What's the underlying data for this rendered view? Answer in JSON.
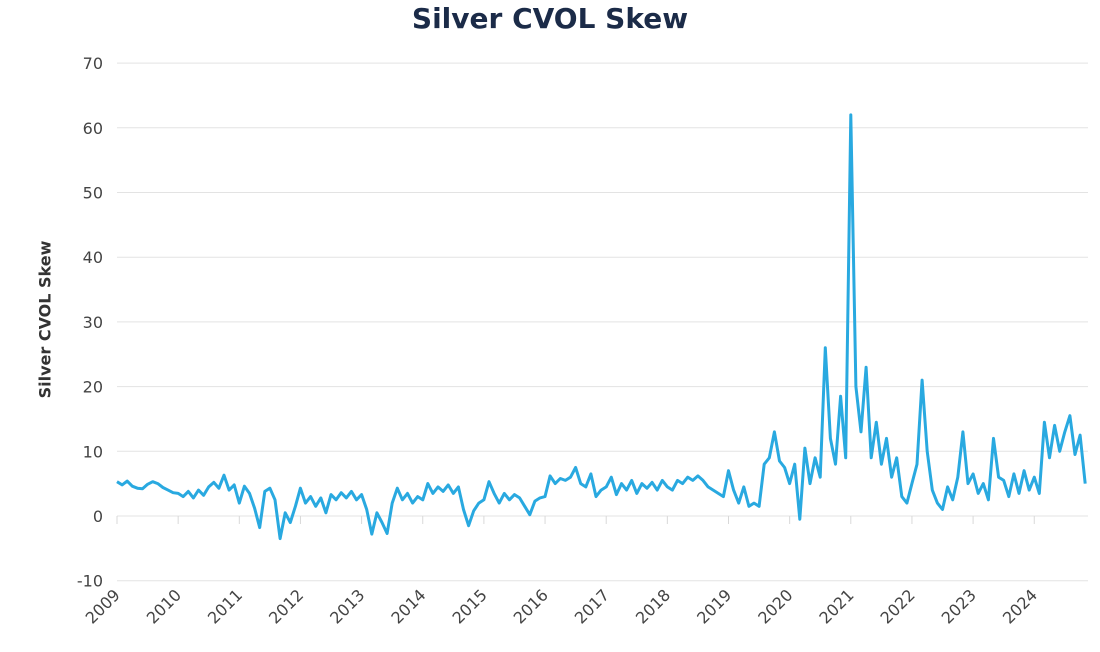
{
  "chart_data": {
    "type": "line",
    "title": "Silver CVOL Skew",
    "xlabel": "",
    "ylabel": "Silver CVOL Skew",
    "ylim": [
      -10,
      70
    ],
    "yticks": [
      "-10",
      "0",
      "10",
      "20",
      "30",
      "40",
      "50",
      "60",
      "70"
    ],
    "xticks": [
      "2009",
      "2010",
      "2011",
      "2012",
      "2013",
      "2014",
      "2015",
      "2016",
      "2017",
      "2018",
      "2019",
      "2020",
      "2021",
      "2022",
      "2023",
      "2024"
    ],
    "grid": true,
    "color": "#29a9e0",
    "points": [
      [
        "2009-01",
        5.3
      ],
      [
        "2009-02",
        4.8
      ],
      [
        "2009-03",
        5.4
      ],
      [
        "2009-04",
        4.6
      ],
      [
        "2009-05",
        4.3
      ],
      [
        "2009-06",
        4.2
      ],
      [
        "2009-07",
        4.9
      ],
      [
        "2009-08",
        5.3
      ],
      [
        "2009-09",
        5.0
      ],
      [
        "2009-10",
        4.4
      ],
      [
        "2009-11",
        4.0
      ],
      [
        "2009-12",
        3.6
      ],
      [
        "2010-01",
        3.5
      ],
      [
        "2010-02",
        3.0
      ],
      [
        "2010-03",
        3.8
      ],
      [
        "2010-04",
        2.8
      ],
      [
        "2010-05",
        4.0
      ],
      [
        "2010-06",
        3.2
      ],
      [
        "2010-07",
        4.5
      ],
      [
        "2010-08",
        5.2
      ],
      [
        "2010-09",
        4.3
      ],
      [
        "2010-10",
        6.3
      ],
      [
        "2010-11",
        4.0
      ],
      [
        "2010-12",
        4.8
      ],
      [
        "2011-01",
        2.0
      ],
      [
        "2011-02",
        4.6
      ],
      [
        "2011-03",
        3.5
      ],
      [
        "2011-04",
        1.2
      ],
      [
        "2011-05",
        -1.8
      ],
      [
        "2011-06",
        3.8
      ],
      [
        "2011-07",
        4.3
      ],
      [
        "2011-08",
        2.5
      ],
      [
        "2011-09",
        -3.5
      ],
      [
        "2011-10",
        0.5
      ],
      [
        "2011-11",
        -1.0
      ],
      [
        "2011-12",
        1.5
      ],
      [
        "2012-01",
        4.3
      ],
      [
        "2012-02",
        2.0
      ],
      [
        "2012-03",
        3.0
      ],
      [
        "2012-04",
        1.5
      ],
      [
        "2012-05",
        2.8
      ],
      [
        "2012-06",
        0.5
      ],
      [
        "2012-07",
        3.3
      ],
      [
        "2012-08",
        2.5
      ],
      [
        "2012-09",
        3.6
      ],
      [
        "2012-10",
        2.8
      ],
      [
        "2012-11",
        3.8
      ],
      [
        "2012-12",
        2.5
      ],
      [
        "2013-01",
        3.3
      ],
      [
        "2013-02",
        1.0
      ],
      [
        "2013-03",
        -2.8
      ],
      [
        "2013-04",
        0.5
      ],
      [
        "2013-05",
        -1.0
      ],
      [
        "2013-06",
        -2.7
      ],
      [
        "2013-07",
        2.0
      ],
      [
        "2013-08",
        4.3
      ],
      [
        "2013-09",
        2.5
      ],
      [
        "2013-10",
        3.5
      ],
      [
        "2013-11",
        2.0
      ],
      [
        "2013-12",
        3.0
      ],
      [
        "2014-01",
        2.5
      ],
      [
        "2014-02",
        5.0
      ],
      [
        "2014-03",
        3.5
      ],
      [
        "2014-04",
        4.5
      ],
      [
        "2014-05",
        3.8
      ],
      [
        "2014-06",
        4.8
      ],
      [
        "2014-07",
        3.5
      ],
      [
        "2014-08",
        4.5
      ],
      [
        "2014-09",
        1.0
      ],
      [
        "2014-10",
        -1.5
      ],
      [
        "2014-11",
        0.8
      ],
      [
        "2014-12",
        2.0
      ],
      [
        "2015-01",
        2.5
      ],
      [
        "2015-02",
        5.3
      ],
      [
        "2015-03",
        3.5
      ],
      [
        "2015-04",
        2.0
      ],
      [
        "2015-05",
        3.5
      ],
      [
        "2015-06",
        2.5
      ],
      [
        "2015-07",
        3.3
      ],
      [
        "2015-08",
        2.8
      ],
      [
        "2015-09",
        1.5
      ],
      [
        "2015-10",
        0.2
      ],
      [
        "2015-11",
        2.3
      ],
      [
        "2015-12",
        2.8
      ],
      [
        "2016-01",
        3.0
      ],
      [
        "2016-02",
        6.2
      ],
      [
        "2016-03",
        5.0
      ],
      [
        "2016-04",
        5.8
      ],
      [
        "2016-05",
        5.5
      ],
      [
        "2016-06",
        6.0
      ],
      [
        "2016-07",
        7.5
      ],
      [
        "2016-08",
        5.0
      ],
      [
        "2016-09",
        4.5
      ],
      [
        "2016-10",
        6.5
      ],
      [
        "2016-11",
        3.0
      ],
      [
        "2016-12",
        4.0
      ],
      [
        "2017-01",
        4.5
      ],
      [
        "2017-02",
        6.0
      ],
      [
        "2017-03",
        3.3
      ],
      [
        "2017-04",
        5.0
      ],
      [
        "2017-05",
        4.0
      ],
      [
        "2017-06",
        5.5
      ],
      [
        "2017-07",
        3.5
      ],
      [
        "2017-08",
        5.0
      ],
      [
        "2017-09",
        4.3
      ],
      [
        "2017-10",
        5.2
      ],
      [
        "2017-11",
        4.0
      ],
      [
        "2017-12",
        5.5
      ],
      [
        "2018-01",
        4.5
      ],
      [
        "2018-02",
        4.0
      ],
      [
        "2018-03",
        5.5
      ],
      [
        "2018-04",
        5.0
      ],
      [
        "2018-05",
        6.0
      ],
      [
        "2018-06",
        5.5
      ],
      [
        "2018-07",
        6.2
      ],
      [
        "2018-08",
        5.5
      ],
      [
        "2018-09",
        4.5
      ],
      [
        "2018-10",
        4.0
      ],
      [
        "2018-11",
        3.5
      ],
      [
        "2018-12",
        3.0
      ],
      [
        "2019-01",
        7.0
      ],
      [
        "2019-02",
        4.0
      ],
      [
        "2019-03",
        2.0
      ],
      [
        "2019-04",
        4.5
      ],
      [
        "2019-05",
        1.5
      ],
      [
        "2019-06",
        2.0
      ],
      [
        "2019-07",
        1.5
      ],
      [
        "2019-08",
        8.0
      ],
      [
        "2019-09",
        9.0
      ],
      [
        "2019-10",
        13.0
      ],
      [
        "2019-11",
        8.5
      ],
      [
        "2019-12",
        7.5
      ],
      [
        "2020-01",
        5.0
      ],
      [
        "2020-02",
        8.0
      ],
      [
        "2020-03",
        -0.5
      ],
      [
        "2020-04",
        10.5
      ],
      [
        "2020-05",
        5.0
      ],
      [
        "2020-06",
        9.0
      ],
      [
        "2020-07",
        6.0
      ],
      [
        "2020-08",
        26.0
      ],
      [
        "2020-09",
        12.0
      ],
      [
        "2020-10",
        8.0
      ],
      [
        "2020-11",
        18.5
      ],
      [
        "2020-12",
        9.0
      ],
      [
        "2021-01",
        62.0
      ],
      [
        "2021-02",
        20.0
      ],
      [
        "2021-03",
        13.0
      ],
      [
        "2021-04",
        23.0
      ],
      [
        "2021-05",
        9.0
      ],
      [
        "2021-06",
        14.5
      ],
      [
        "2021-07",
        8.0
      ],
      [
        "2021-08",
        12.0
      ],
      [
        "2021-09",
        6.0
      ],
      [
        "2021-10",
        9.0
      ],
      [
        "2021-11",
        3.0
      ],
      [
        "2021-12",
        2.0
      ],
      [
        "2022-01",
        5.0
      ],
      [
        "2022-02",
        8.0
      ],
      [
        "2022-03",
        21.0
      ],
      [
        "2022-04",
        10.0
      ],
      [
        "2022-05",
        4.0
      ],
      [
        "2022-06",
        2.0
      ],
      [
        "2022-07",
        1.0
      ],
      [
        "2022-08",
        4.5
      ],
      [
        "2022-09",
        2.5
      ],
      [
        "2022-10",
        6.0
      ],
      [
        "2022-11",
        13.0
      ],
      [
        "2022-12",
        5.0
      ],
      [
        "2023-01",
        6.5
      ],
      [
        "2023-02",
        3.5
      ],
      [
        "2023-03",
        5.0
      ],
      [
        "2023-04",
        2.5
      ],
      [
        "2023-05",
        12.0
      ],
      [
        "2023-06",
        6.0
      ],
      [
        "2023-07",
        5.5
      ],
      [
        "2023-08",
        3.0
      ],
      [
        "2023-09",
        6.5
      ],
      [
        "2023-10",
        3.5
      ],
      [
        "2023-11",
        7.0
      ],
      [
        "2023-12",
        4.0
      ],
      [
        "2024-01",
        6.0
      ],
      [
        "2024-02",
        3.5
      ],
      [
        "2024-03",
        14.5
      ],
      [
        "2024-04",
        9.0
      ],
      [
        "2024-05",
        14.0
      ],
      [
        "2024-06",
        10.0
      ],
      [
        "2024-07",
        13.0
      ],
      [
        "2024-08",
        15.5
      ],
      [
        "2024-09",
        9.5
      ],
      [
        "2024-10",
        12.5
      ],
      [
        "2024-11",
        5.0
      ]
    ]
  }
}
